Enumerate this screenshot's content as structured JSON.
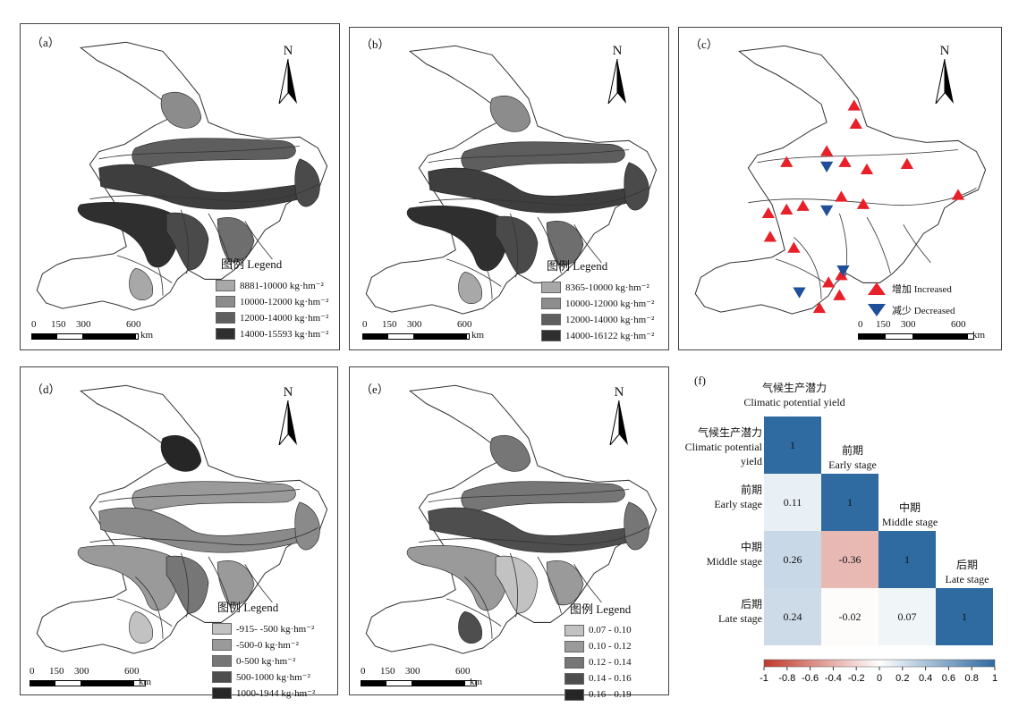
{
  "north_label": "N",
  "scale": {
    "ticks": [
      "0",
      "150",
      "300",
      "600"
    ],
    "unit": "km"
  },
  "legend_title": "图例 Legend",
  "panels": {
    "a": {
      "tag": "（a）",
      "legend": [
        "8881-10000 kg·hm⁻²",
        "10000-12000 kg·hm⁻²",
        "12000-14000 kg·hm⁻²",
        "14000-15593 kg·hm⁻²"
      ]
    },
    "b": {
      "tag": "（b）",
      "legend": [
        "8365-10000 kg·hm⁻²",
        "10000-12000 kg·hm⁻²",
        "12000-14000 kg·hm⁻²",
        "14000-16122 kg·hm⁻²"
      ]
    },
    "c": {
      "tag": "（c）",
      "increased": "增加 Increased",
      "decreased": "减少 Decreased"
    },
    "d": {
      "tag": "（d）",
      "legend": [
        "-915- -500 kg·hm⁻²",
        "-500-0 kg·hm⁻²",
        "0-500 kg·hm⁻²",
        "500-1000 kg·hm⁻²",
        "1000-1944 kg·hm⁻²"
      ]
    },
    "e": {
      "tag": "（e）",
      "legend": [
        "0.07 - 0.10",
        "0.10 - 0.12",
        "0.12 - 0.14",
        "0.14 - 0.16",
        "0.16 - 0.19"
      ]
    },
    "f": {
      "tag": "(f)"
    }
  },
  "colors": {
    "class1": "#a8a8a8",
    "class2": "#8c8c8c",
    "class3": "#6e6e6e",
    "class4": "#4a4a4a",
    "class5": "#2f2f2f",
    "increased": "#e8202a",
    "decreased": "#1f4e9a"
  },
  "correlation": {
    "header_cn": "气候生产潜力",
    "header_en": "Climatic potential yield",
    "rows": [
      {
        "cn": "气候生产潜力",
        "en": "Climatic potential yield"
      },
      {
        "cn": "前期",
        "en": "Early stage"
      },
      {
        "cn": "中期",
        "en": "Middle stage"
      },
      {
        "cn": "后期",
        "en": "Late stage"
      }
    ],
    "matrix": [
      [
        "1"
      ],
      [
        "0.11",
        "1"
      ],
      [
        "0.26",
        "-0.36",
        "1"
      ],
      [
        "0.24",
        "-0.02",
        "0.07",
        "1"
      ]
    ],
    "matrix_values": [
      [
        1
      ],
      [
        0.11,
        1
      ],
      [
        0.26,
        -0.36,
        1
      ],
      [
        0.24,
        -0.02,
        0.07,
        1
      ]
    ],
    "colorbar_ticks": [
      "-1",
      "-0.8",
      "-0.6",
      "-0.4",
      "-0.2",
      "0",
      "0.2",
      "0.4",
      "0.6",
      "0.8",
      "1"
    ],
    "colors": {
      "neg": "#c0392b",
      "mid": "#ffffff",
      "pos": "#2f6aa0"
    }
  }
}
